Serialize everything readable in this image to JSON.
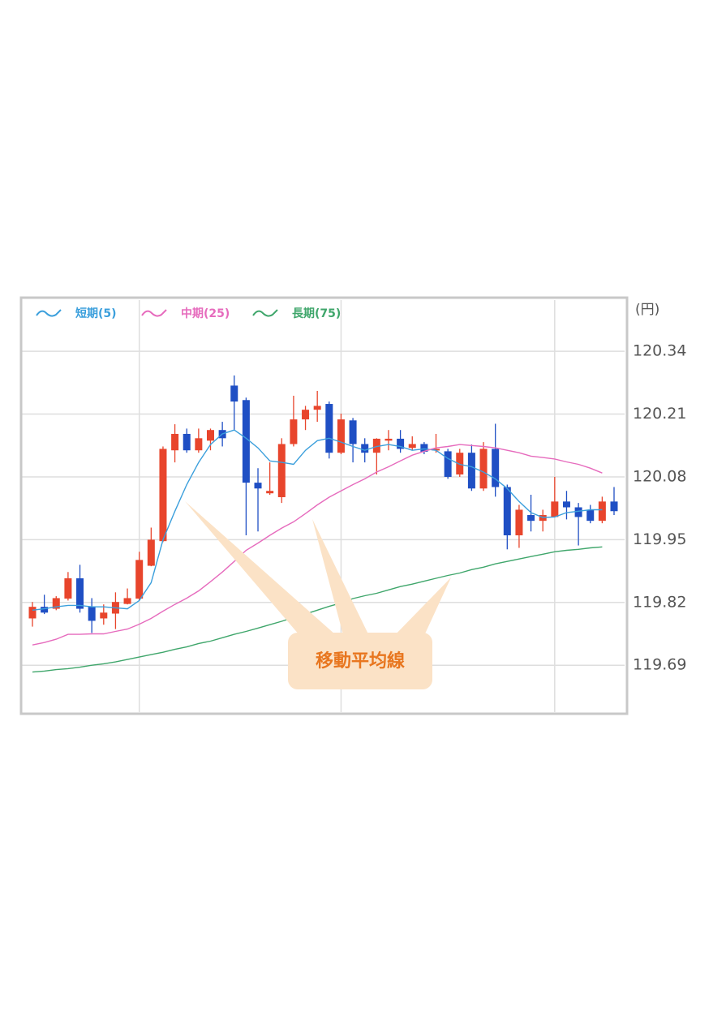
{
  "chart_data": {
    "type": "candlestick",
    "unit_label": "(円)",
    "annotation": "移動平均線",
    "ylim": [
      119.593,
      120.446
    ],
    "yticks": [
      120.34,
      120.21,
      120.08,
      119.95,
      119.82,
      119.69
    ],
    "grid": true,
    "xgrid": [
      9,
      26,
      44
    ],
    "up_color": "#e8452c",
    "down_color": "#1f4fc4",
    "open": [
      119.787,
      119.811,
      119.807,
      119.828,
      119.87,
      119.811,
      119.787,
      119.797,
      119.817,
      119.828,
      119.896,
      119.947,
      120.135,
      120.169,
      120.135,
      120.155,
      120.177,
      120.269,
      120.239,
      120.068,
      120.046,
      120.038,
      120.148,
      120.199,
      120.219,
      120.231,
      120.13,
      120.197,
      120.148,
      120.13,
      120.155,
      120.159,
      120.14,
      120.148,
      120.135,
      120.133,
      120.085,
      120.13,
      120.056,
      120.138,
      120.059,
      119.959,
      120.001,
      119.989,
      119.997,
      120.029,
      120.017,
      120.012,
      119.989,
      120.029
    ],
    "high": [
      119.821,
      119.836,
      119.833,
      119.883,
      119.898,
      119.829,
      119.816,
      119.841,
      119.849,
      119.925,
      119.975,
      120.143,
      120.189,
      120.18,
      120.18,
      120.18,
      120.194,
      120.29,
      120.244,
      120.098,
      120.11,
      120.16,
      120.248,
      120.227,
      120.258,
      120.236,
      120.211,
      120.202,
      120.16,
      120.16,
      120.177,
      120.177,
      120.164,
      120.152,
      120.169,
      120.138,
      120.138,
      120.147,
      120.152,
      120.19,
      120.064,
      120.022,
      120.043,
      120.012,
      120.08,
      120.051,
      120.026,
      120.022,
      120.039,
      120.059
    ],
    "low": [
      119.77,
      119.796,
      119.804,
      119.824,
      119.799,
      119.757,
      119.774,
      119.765,
      119.816,
      119.824,
      119.895,
      119.945,
      120.11,
      120.13,
      120.13,
      120.135,
      120.143,
      120.177,
      119.959,
      119.967,
      120.043,
      120.026,
      120.143,
      120.177,
      120.194,
      120.118,
      120.127,
      120.11,
      120.11,
      120.085,
      120.135,
      120.13,
      120.135,
      120.127,
      120.13,
      120.076,
      120.08,
      120.051,
      120.051,
      120.039,
      119.93,
      119.933,
      119.967,
      119.967,
      119.996,
      119.992,
      119.938,
      119.984,
      119.984,
      120.001
    ],
    "close": [
      119.811,
      119.799,
      119.829,
      119.87,
      119.807,
      119.782,
      119.799,
      119.821,
      119.829,
      119.908,
      119.95,
      120.138,
      120.169,
      120.135,
      120.16,
      120.177,
      120.16,
      120.236,
      120.068,
      120.056,
      120.051,
      120.148,
      120.199,
      120.219,
      120.227,
      120.13,
      120.199,
      120.148,
      120.13,
      120.159,
      120.159,
      120.138,
      120.148,
      120.132,
      120.138,
      120.08,
      120.13,
      120.056,
      120.138,
      120.059,
      119.959,
      120.012,
      119.989,
      120.001,
      120.029,
      120.017,
      119.997,
      119.989,
      120.029,
      120.009
    ],
    "series": [
      {
        "name": "短期(5)",
        "color": "#3b9fdc",
        "values": [
          119.804,
          119.807,
          119.811,
          119.814,
          119.814,
          119.811,
          119.811,
          119.809,
          119.807,
          119.824,
          119.861,
          119.95,
          120.009,
          120.064,
          120.11,
          120.147,
          120.169,
          120.177,
          120.16,
          120.14,
          120.113,
          120.11,
          120.106,
          120.135,
          120.155,
          120.16,
          120.152,
          120.143,
          120.135,
          120.143,
          120.147,
          120.143,
          120.135,
          120.138,
          120.135,
          120.118,
          120.106,
          120.101,
          120.09,
          120.076,
          120.056,
          120.029,
          120.006,
          119.996,
          119.997,
          120.006,
          120.009,
          120.012,
          120.012,
          null
        ]
      },
      {
        "name": "中期(25)",
        "color": "#e66bbd",
        "values": [
          119.732,
          119.737,
          119.744,
          119.754,
          119.754,
          119.755,
          119.755,
          119.76,
          119.765,
          119.775,
          119.787,
          119.802,
          119.816,
          119.829,
          119.844,
          119.863,
          119.883,
          119.905,
          119.928,
          119.943,
          119.959,
          119.974,
          119.987,
          120.004,
          120.022,
          120.038,
          120.051,
          120.064,
          120.076,
          120.09,
          120.101,
          120.113,
          120.125,
          120.133,
          120.14,
          120.143,
          120.147,
          120.145,
          120.143,
          120.14,
          120.135,
          120.13,
          120.123,
          120.12,
          120.117,
          120.111,
          120.106,
          120.098,
          120.088,
          null
        ]
      },
      {
        "name": "長期(75)",
        "color": "#3fa66b",
        "values": [
          119.676,
          119.678,
          119.681,
          119.683,
          119.686,
          119.69,
          119.693,
          119.697,
          119.702,
          119.707,
          119.712,
          119.717,
          119.723,
          119.728,
          119.735,
          119.74,
          119.747,
          119.754,
          119.76,
          119.767,
          119.774,
          119.781,
          119.789,
          119.796,
          119.804,
          119.812,
          119.819,
          119.828,
          119.834,
          119.839,
          119.846,
          119.853,
          119.858,
          119.864,
          119.87,
          119.876,
          119.881,
          119.888,
          119.893,
          119.9,
          119.905,
          119.91,
          119.915,
          119.92,
          119.925,
          119.928,
          119.93,
          119.933,
          119.935,
          null
        ]
      }
    ]
  }
}
